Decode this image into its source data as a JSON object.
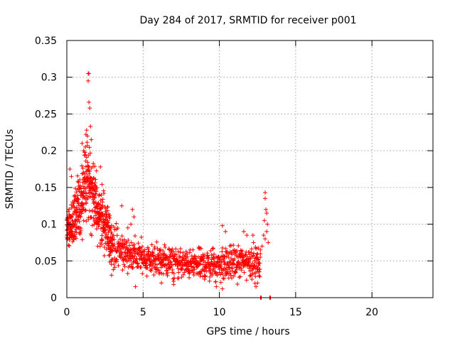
{
  "chart_data": {
    "type": "scatter",
    "title": "Day 284 of 2017, SRMTID for receiver p001",
    "xlabel": "GPS time / hours",
    "ylabel": "SRMTID / TECUs",
    "xlim": [
      0,
      24
    ],
    "ylim": [
      0,
      0.35
    ],
    "xticks": [
      0,
      5,
      10,
      15,
      20
    ],
    "xtick_labels": [
      "0",
      "5",
      "10",
      "15",
      "20"
    ],
    "yticks": [
      0,
      0.05,
      0.1,
      0.15,
      0.2,
      0.25,
      0.3,
      0.35
    ],
    "ytick_labels": [
      "0",
      "0.05",
      "0.1",
      "0.15",
      "0.2",
      "0.25",
      "0.3",
      "0.35"
    ],
    "grid": true,
    "marker": "+",
    "color": "#ff0000",
    "envelope": [
      {
        "x": 0.0,
        "y": 0.09,
        "spread": 0.03
      },
      {
        "x": 0.5,
        "y": 0.11,
        "spread": 0.05
      },
      {
        "x": 1.0,
        "y": 0.13,
        "spread": 0.06
      },
      {
        "x": 1.3,
        "y": 0.17,
        "spread": 0.08
      },
      {
        "x": 1.7,
        "y": 0.14,
        "spread": 0.06
      },
      {
        "x": 2.0,
        "y": 0.12,
        "spread": 0.05
      },
      {
        "x": 2.5,
        "y": 0.1,
        "spread": 0.05
      },
      {
        "x": 3.0,
        "y": 0.07,
        "spread": 0.04
      },
      {
        "x": 4.0,
        "y": 0.06,
        "spread": 0.03
      },
      {
        "x": 5.0,
        "y": 0.055,
        "spread": 0.03
      },
      {
        "x": 6.0,
        "y": 0.05,
        "spread": 0.03
      },
      {
        "x": 8.0,
        "y": 0.045,
        "spread": 0.025
      },
      {
        "x": 10.0,
        "y": 0.045,
        "spread": 0.03
      },
      {
        "x": 12.0,
        "y": 0.05,
        "spread": 0.03
      },
      {
        "x": 12.7,
        "y": 0.045,
        "spread": 0.03
      }
    ],
    "extra_points": [
      {
        "x": 1.4,
        "y": 0.305
      },
      {
        "x": 1.45,
        "y": 0.305
      },
      {
        "x": 1.4,
        "y": 0.295
      },
      {
        "x": 1.45,
        "y": 0.266
      },
      {
        "x": 1.5,
        "y": 0.258
      },
      {
        "x": 1.3,
        "y": 0.228
      },
      {
        "x": 1.35,
        "y": 0.22
      },
      {
        "x": 1.55,
        "y": 0.233
      },
      {
        "x": 1.6,
        "y": 0.215
      },
      {
        "x": 1.0,
        "y": 0.21
      },
      {
        "x": 1.1,
        "y": 0.2
      },
      {
        "x": 2.2,
        "y": 0.178
      },
      {
        "x": 0.2,
        "y": 0.175
      },
      {
        "x": 0.3,
        "y": 0.165
      },
      {
        "x": 3.6,
        "y": 0.125
      },
      {
        "x": 4.3,
        "y": 0.12
      },
      {
        "x": 4.4,
        "y": 0.11
      },
      {
        "x": 4.2,
        "y": 0.1
      },
      {
        "x": 4.0,
        "y": 0.095
      },
      {
        "x": 10.2,
        "y": 0.098
      },
      {
        "x": 10.4,
        "y": 0.09
      },
      {
        "x": 11.6,
        "y": 0.09
      },
      {
        "x": 11.8,
        "y": 0.085
      },
      {
        "x": 12.2,
        "y": 0.085
      },
      {
        "x": 13.0,
        "y": 0.143
      },
      {
        "x": 13.0,
        "y": 0.135
      },
      {
        "x": 13.05,
        "y": 0.12
      },
      {
        "x": 13.1,
        "y": 0.115
      },
      {
        "x": 12.95,
        "y": 0.105
      },
      {
        "x": 13.15,
        "y": 0.1
      },
      {
        "x": 13.1,
        "y": 0.09
      },
      {
        "x": 12.9,
        "y": 0.085
      },
      {
        "x": 13.0,
        "y": 0.08
      },
      {
        "x": 13.2,
        "y": 0.075
      },
      {
        "x": 12.8,
        "y": 0.07
      },
      {
        "x": 12.6,
        "y": 0.03
      },
      {
        "x": 12.5,
        "y": 0.02
      },
      {
        "x": 12.4,
        "y": 0.015
      },
      {
        "x": 4.5,
        "y": 0.015
      },
      {
        "x": 6.2,
        "y": 0.02
      },
      {
        "x": 7.0,
        "y": 0.018
      },
      {
        "x": 9.8,
        "y": 0.015
      },
      {
        "x": 10.2,
        "y": 0.012
      },
      {
        "x": 12.7,
        "y": 0.0
      },
      {
        "x": 12.75,
        "y": 0.0
      },
      {
        "x": 13.3,
        "y": 0.0
      },
      {
        "x": 13.35,
        "y": 0.0
      }
    ]
  }
}
